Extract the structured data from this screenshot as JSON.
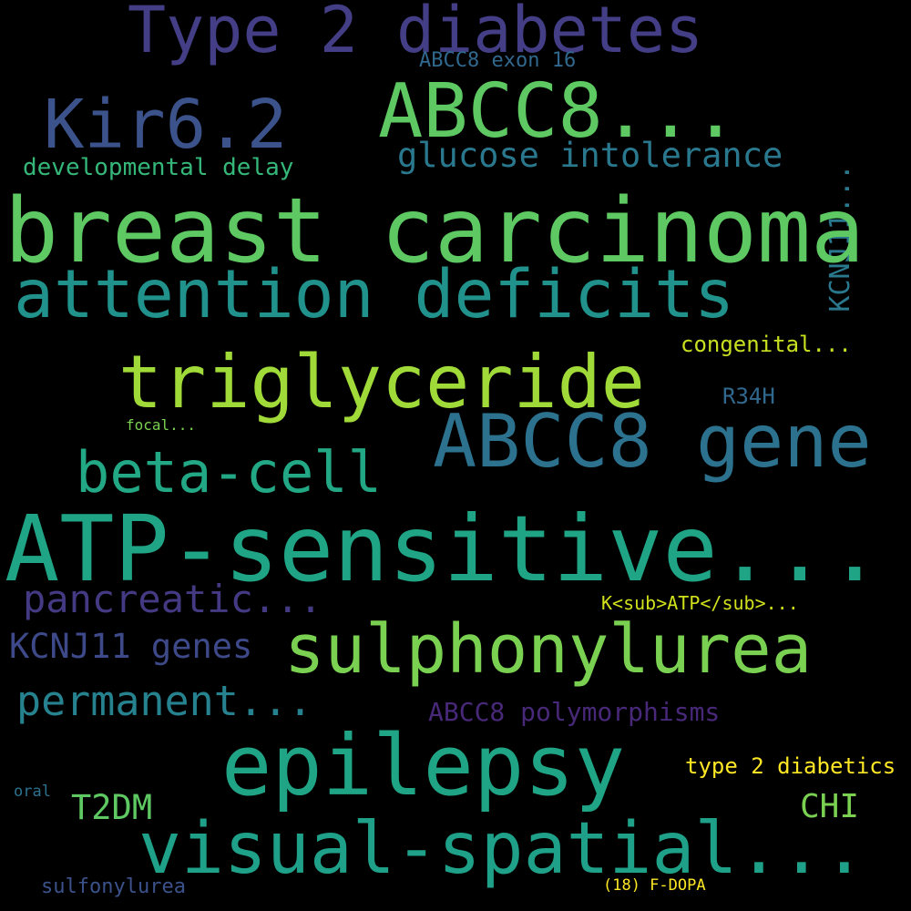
{
  "words": [
    {
      "text": "Type 2 diabetes",
      "color": "#433e85"
    },
    {
      "text": "ABCC8...",
      "color": "#5ec962"
    },
    {
      "text": "Kir6.2",
      "color": "#3b528b"
    },
    {
      "text": "ABCC8 exon 16",
      "color": "#31688e"
    },
    {
      "text": "glucose intolerance",
      "color": "#2a788e"
    },
    {
      "text": "developmental delay",
      "color": "#35b779"
    },
    {
      "text": "KCNJ11...",
      "color": "#2a788e"
    },
    {
      "text": "breast carcinoma",
      "color": "#5ec962"
    },
    {
      "text": "attention deficits",
      "color": "#21918c"
    },
    {
      "text": "congenital...",
      "color": "#c8e020"
    },
    {
      "text": "triglyceride",
      "color": "#a0da39"
    },
    {
      "text": "R34H",
      "color": "#31688e"
    },
    {
      "text": "focal...",
      "color": "#7ad151"
    },
    {
      "text": "ABCC8 gene",
      "color": "#2c728e"
    },
    {
      "text": "beta-cell",
      "color": "#22a884"
    },
    {
      "text": "ATP-sensitive...",
      "color": "#20a486"
    },
    {
      "text": "pancreatic...",
      "color": "#443983"
    },
    {
      "text": "K<sub>ATP</sub>...",
      "color": "#d0e11c"
    },
    {
      "text": "KCNJ11 genes",
      "color": "#3e4989"
    },
    {
      "text": "sulphonylurea",
      "color": "#7ad151"
    },
    {
      "text": "permanent...",
      "color": "#26828e"
    },
    {
      "text": "ABCC8 polymorphisms",
      "color": "#482878"
    },
    {
      "text": "epilepsy",
      "color": "#20a486"
    },
    {
      "text": "type 2 diabetics",
      "color": "#fde725"
    },
    {
      "text": "oral",
      "color": "#2c728e"
    },
    {
      "text": "T2DM",
      "color": "#5ec962"
    },
    {
      "text": "CHI",
      "color": "#7ad151"
    },
    {
      "text": "visual-spatial...",
      "color": "#1fa088"
    },
    {
      "text": "sulfonylurea",
      "color": "#3b528b"
    },
    {
      "text": "(18) F-DOPA",
      "color": "#fde725"
    }
  ]
}
